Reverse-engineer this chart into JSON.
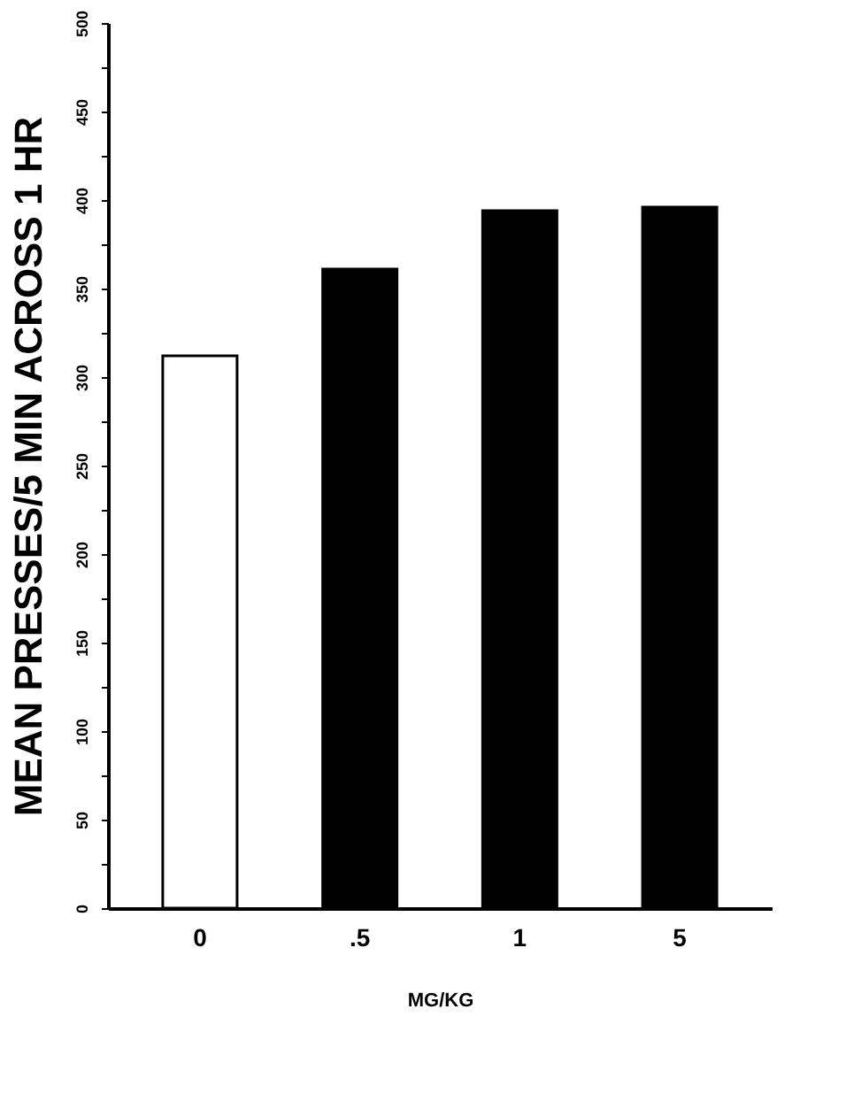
{
  "chart_data": {
    "type": "bar",
    "xlabel": "MG/KG",
    "ylabel": "MEAN PRESSES/5 MIN ACROSS 1 HR",
    "categories": [
      "0",
      ".5",
      "1",
      "5"
    ],
    "values": [
      312,
      361,
      394,
      396
    ],
    "colors": [
      "#ffffff",
      "#000000",
      "#000000",
      "#000000"
    ],
    "ylim": [
      0,
      500
    ],
    "yticks": [
      0,
      {
        "value": 25,
        "label": null
      },
      50,
      {
        "value": 75,
        "label": null
      },
      100,
      {
        "value": 125,
        "label": null
      },
      150,
      {
        "value": 175,
        "label": null
      },
      200,
      {
        "value": 225,
        "label": null
      },
      250,
      {
        "value": 275,
        "label": null
      },
      300,
      {
        "value": 325,
        "label": null
      },
      350,
      {
        "value": 375,
        "label": null
      },
      400,
      {
        "value": 425,
        "label": null
      },
      450,
      {
        "value": 475,
        "label": null
      },
      500
    ],
    "grid": false
  }
}
